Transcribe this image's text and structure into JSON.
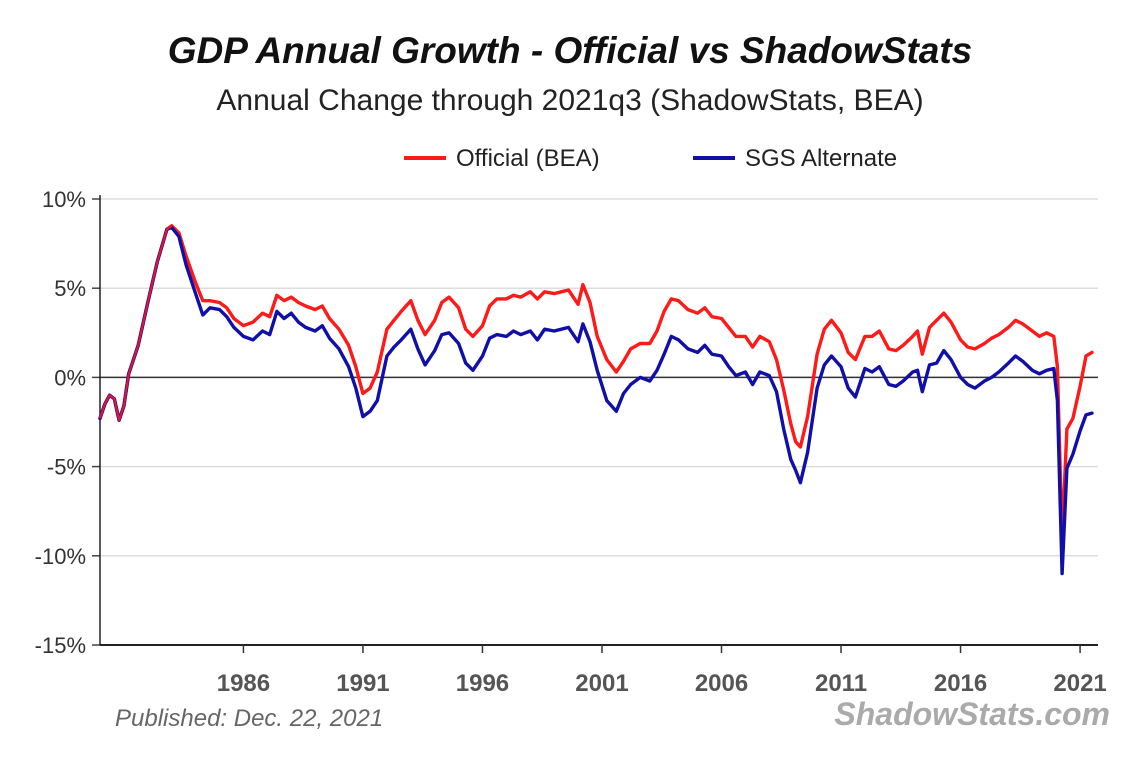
{
  "chart_data": {
    "type": "line",
    "title": "GDP Annual Growth - Official vs ShadowStats",
    "subtitle": "Annual Change through 2021q3  (ShadowStats, BEA)",
    "xlabel": "",
    "ylabel": "",
    "xlim": [
      1980.0,
      2021.75
    ],
    "ylim": [
      -15,
      10
    ],
    "y_ticks": [
      10,
      5,
      0,
      -5,
      -10,
      -15
    ],
    "y_tick_labels": [
      "10%",
      "5%",
      "0%",
      "-5%",
      "-10%",
      "-15%"
    ],
    "x_ticks": [
      1986,
      1991,
      1996,
      2001,
      2006,
      2011,
      2016,
      2021
    ],
    "x_tick_labels": [
      "1986",
      "1991",
      "1996",
      "2001",
      "2006",
      "2011",
      "2016",
      "2021"
    ],
    "grid": true,
    "legend_position": "top-center",
    "series": [
      {
        "name": "Official (BEA)",
        "color": "#ff1a1a",
        "points": [
          [
            1980.0,
            -2.3
          ],
          [
            1980.2,
            -1.5
          ],
          [
            1980.4,
            -1.0
          ],
          [
            1980.6,
            -1.2
          ],
          [
            1980.8,
            -2.4
          ],
          [
            1981.0,
            -1.6
          ],
          [
            1981.2,
            0.2
          ],
          [
            1981.6,
            1.8
          ],
          [
            1982.0,
            4.2
          ],
          [
            1982.4,
            6.5
          ],
          [
            1982.8,
            8.3
          ],
          [
            1983.0,
            8.5
          ],
          [
            1983.3,
            8.1
          ],
          [
            1983.6,
            6.8
          ],
          [
            1984.0,
            5.3
          ],
          [
            1984.3,
            4.3
          ],
          [
            1984.6,
            4.3
          ],
          [
            1985.0,
            4.2
          ],
          [
            1985.3,
            3.9
          ],
          [
            1985.6,
            3.3
          ],
          [
            1986.0,
            2.9
          ],
          [
            1986.4,
            3.1
          ],
          [
            1986.8,
            3.6
          ],
          [
            1987.1,
            3.4
          ],
          [
            1987.4,
            4.6
          ],
          [
            1987.7,
            4.3
          ],
          [
            1988.0,
            4.5
          ],
          [
            1988.3,
            4.2
          ],
          [
            1988.6,
            4.0
          ],
          [
            1989.0,
            3.8
          ],
          [
            1989.3,
            4.0
          ],
          [
            1989.6,
            3.3
          ],
          [
            1990.0,
            2.7
          ],
          [
            1990.4,
            1.8
          ],
          [
            1990.7,
            0.6
          ],
          [
            1991.0,
            -0.9
          ],
          [
            1991.3,
            -0.6
          ],
          [
            1991.6,
            0.3
          ],
          [
            1992.0,
            2.7
          ],
          [
            1992.3,
            3.2
          ],
          [
            1992.6,
            3.7
          ],
          [
            1993.0,
            4.3
          ],
          [
            1993.3,
            3.2
          ],
          [
            1993.6,
            2.4
          ],
          [
            1994.0,
            3.2
          ],
          [
            1994.3,
            4.2
          ],
          [
            1994.6,
            4.5
          ],
          [
            1995.0,
            3.9
          ],
          [
            1995.3,
            2.7
          ],
          [
            1995.6,
            2.3
          ],
          [
            1996.0,
            2.9
          ],
          [
            1996.3,
            4.0
          ],
          [
            1996.6,
            4.4
          ],
          [
            1997.0,
            4.4
          ],
          [
            1997.3,
            4.6
          ],
          [
            1997.6,
            4.5
          ],
          [
            1998.0,
            4.8
          ],
          [
            1998.3,
            4.4
          ],
          [
            1998.6,
            4.8
          ],
          [
            1999.0,
            4.7
          ],
          [
            1999.3,
            4.8
          ],
          [
            1999.6,
            4.9
          ],
          [
            2000.0,
            4.1
          ],
          [
            2000.2,
            5.2
          ],
          [
            2000.5,
            4.2
          ],
          [
            2000.8,
            2.3
          ],
          [
            2001.2,
            1.0
          ],
          [
            2001.6,
            0.3
          ],
          [
            2001.9,
            0.9
          ],
          [
            2002.2,
            1.6
          ],
          [
            2002.6,
            1.9
          ],
          [
            2003.0,
            1.9
          ],
          [
            2003.3,
            2.6
          ],
          [
            2003.6,
            3.7
          ],
          [
            2003.9,
            4.4
          ],
          [
            2004.2,
            4.3
          ],
          [
            2004.6,
            3.8
          ],
          [
            2005.0,
            3.6
          ],
          [
            2005.3,
            3.9
          ],
          [
            2005.6,
            3.4
          ],
          [
            2006.0,
            3.3
          ],
          [
            2006.3,
            2.8
          ],
          [
            2006.6,
            2.3
          ],
          [
            2007.0,
            2.3
          ],
          [
            2007.3,
            1.7
          ],
          [
            2007.6,
            2.3
          ],
          [
            2008.0,
            2.0
          ],
          [
            2008.3,
            1.0
          ],
          [
            2008.6,
            -0.7
          ],
          [
            2008.9,
            -2.6
          ],
          [
            2009.1,
            -3.6
          ],
          [
            2009.3,
            -3.9
          ],
          [
            2009.6,
            -2.2
          ],
          [
            2010.0,
            1.3
          ],
          [
            2010.3,
            2.7
          ],
          [
            2010.6,
            3.2
          ],
          [
            2011.0,
            2.5
          ],
          [
            2011.3,
            1.4
          ],
          [
            2011.6,
            1.0
          ],
          [
            2012.0,
            2.3
          ],
          [
            2012.3,
            2.3
          ],
          [
            2012.6,
            2.6
          ],
          [
            2013.0,
            1.6
          ],
          [
            2013.3,
            1.5
          ],
          [
            2013.6,
            1.8
          ],
          [
            2014.0,
            2.3
          ],
          [
            2014.2,
            2.6
          ],
          [
            2014.4,
            1.3
          ],
          [
            2014.7,
            2.8
          ],
          [
            2015.0,
            3.2
          ],
          [
            2015.3,
            3.6
          ],
          [
            2015.6,
            3.1
          ],
          [
            2016.0,
            2.1
          ],
          [
            2016.3,
            1.7
          ],
          [
            2016.6,
            1.6
          ],
          [
            2017.0,
            1.9
          ],
          [
            2017.3,
            2.2
          ],
          [
            2017.6,
            2.4
          ],
          [
            2018.0,
            2.8
          ],
          [
            2018.3,
            3.2
          ],
          [
            2018.6,
            3.0
          ],
          [
            2019.0,
            2.6
          ],
          [
            2019.3,
            2.3
          ],
          [
            2019.6,
            2.5
          ],
          [
            2019.9,
            2.3
          ],
          [
            2020.05,
            0.6
          ],
          [
            2020.25,
            -9.1
          ],
          [
            2020.45,
            -2.9
          ],
          [
            2020.7,
            -2.3
          ],
          [
            2021.0,
            -0.5
          ],
          [
            2021.25,
            1.2
          ],
          [
            2021.5,
            1.4
          ]
        ]
      },
      {
        "name": "SGS Alternate",
        "color": "#1010a8",
        "points": [
          [
            1980.0,
            -2.3
          ],
          [
            1980.2,
            -1.5
          ],
          [
            1980.4,
            -1.0
          ],
          [
            1980.6,
            -1.2
          ],
          [
            1980.8,
            -2.4
          ],
          [
            1981.0,
            -1.6
          ],
          [
            1981.2,
            0.2
          ],
          [
            1981.6,
            1.8
          ],
          [
            1982.0,
            4.2
          ],
          [
            1982.4,
            6.5
          ],
          [
            1982.8,
            8.3
          ],
          [
            1983.0,
            8.4
          ],
          [
            1983.3,
            7.9
          ],
          [
            1983.6,
            6.3
          ],
          [
            1984.0,
            4.7
          ],
          [
            1984.3,
            3.5
          ],
          [
            1984.6,
            3.9
          ],
          [
            1985.0,
            3.8
          ],
          [
            1985.3,
            3.4
          ],
          [
            1985.6,
            2.8
          ],
          [
            1986.0,
            2.3
          ],
          [
            1986.4,
            2.1
          ],
          [
            1986.8,
            2.6
          ],
          [
            1987.1,
            2.4
          ],
          [
            1987.4,
            3.7
          ],
          [
            1987.7,
            3.3
          ],
          [
            1988.0,
            3.6
          ],
          [
            1988.3,
            3.1
          ],
          [
            1988.6,
            2.8
          ],
          [
            1989.0,
            2.6
          ],
          [
            1989.3,
            2.9
          ],
          [
            1989.6,
            2.2
          ],
          [
            1990.0,
            1.6
          ],
          [
            1990.4,
            0.6
          ],
          [
            1990.7,
            -0.6
          ],
          [
            1991.0,
            -2.2
          ],
          [
            1991.3,
            -1.9
          ],
          [
            1991.6,
            -1.3
          ],
          [
            1992.0,
            1.2
          ],
          [
            1992.3,
            1.7
          ],
          [
            1992.6,
            2.1
          ],
          [
            1993.0,
            2.7
          ],
          [
            1993.3,
            1.6
          ],
          [
            1993.6,
            0.7
          ],
          [
            1994.0,
            1.5
          ],
          [
            1994.3,
            2.4
          ],
          [
            1994.6,
            2.5
          ],
          [
            1995.0,
            1.9
          ],
          [
            1995.3,
            0.8
          ],
          [
            1995.6,
            0.4
          ],
          [
            1996.0,
            1.2
          ],
          [
            1996.3,
            2.2
          ],
          [
            1996.6,
            2.4
          ],
          [
            1997.0,
            2.3
          ],
          [
            1997.3,
            2.6
          ],
          [
            1997.6,
            2.4
          ],
          [
            1998.0,
            2.6
          ],
          [
            1998.3,
            2.1
          ],
          [
            1998.6,
            2.7
          ],
          [
            1999.0,
            2.6
          ],
          [
            1999.3,
            2.7
          ],
          [
            1999.6,
            2.8
          ],
          [
            2000.0,
            2.0
          ],
          [
            2000.2,
            3.0
          ],
          [
            2000.5,
            2.0
          ],
          [
            2000.8,
            0.4
          ],
          [
            2001.2,
            -1.3
          ],
          [
            2001.6,
            -1.9
          ],
          [
            2001.9,
            -0.9
          ],
          [
            2002.2,
            -0.4
          ],
          [
            2002.6,
            0.0
          ],
          [
            2003.0,
            -0.2
          ],
          [
            2003.3,
            0.4
          ],
          [
            2003.6,
            1.3
          ],
          [
            2003.9,
            2.3
          ],
          [
            2004.2,
            2.1
          ],
          [
            2004.6,
            1.6
          ],
          [
            2005.0,
            1.4
          ],
          [
            2005.3,
            1.8
          ],
          [
            2005.6,
            1.3
          ],
          [
            2006.0,
            1.2
          ],
          [
            2006.3,
            0.6
          ],
          [
            2006.6,
            0.1
          ],
          [
            2007.0,
            0.3
          ],
          [
            2007.3,
            -0.4
          ],
          [
            2007.6,
            0.3
          ],
          [
            2008.0,
            0.1
          ],
          [
            2008.3,
            -0.8
          ],
          [
            2008.6,
            -2.9
          ],
          [
            2008.9,
            -4.6
          ],
          [
            2009.1,
            -5.2
          ],
          [
            2009.3,
            -5.9
          ],
          [
            2009.6,
            -4.2
          ],
          [
            2010.0,
            -0.6
          ],
          [
            2010.3,
            0.7
          ],
          [
            2010.6,
            1.2
          ],
          [
            2011.0,
            0.6
          ],
          [
            2011.3,
            -0.6
          ],
          [
            2011.6,
            -1.1
          ],
          [
            2012.0,
            0.5
          ],
          [
            2012.3,
            0.3
          ],
          [
            2012.6,
            0.6
          ],
          [
            2013.0,
            -0.4
          ],
          [
            2013.3,
            -0.5
          ],
          [
            2013.6,
            -0.2
          ],
          [
            2014.0,
            0.3
          ],
          [
            2014.2,
            0.4
          ],
          [
            2014.4,
            -0.8
          ],
          [
            2014.7,
            0.7
          ],
          [
            2015.0,
            0.8
          ],
          [
            2015.3,
            1.5
          ],
          [
            2015.6,
            1.0
          ],
          [
            2016.0,
            0.0
          ],
          [
            2016.3,
            -0.4
          ],
          [
            2016.6,
            -0.6
          ],
          [
            2017.0,
            -0.2
          ],
          [
            2017.3,
            0.0
          ],
          [
            2017.6,
            0.3
          ],
          [
            2018.0,
            0.8
          ],
          [
            2018.3,
            1.2
          ],
          [
            2018.6,
            0.9
          ],
          [
            2019.0,
            0.4
          ],
          [
            2019.3,
            0.2
          ],
          [
            2019.6,
            0.4
          ],
          [
            2019.9,
            0.5
          ],
          [
            2020.05,
            -1.3
          ],
          [
            2020.25,
            -11.0
          ],
          [
            2020.45,
            -5.1
          ],
          [
            2020.7,
            -4.3
          ],
          [
            2021.0,
            -3.0
          ],
          [
            2021.25,
            -2.1
          ],
          [
            2021.5,
            -2.0
          ]
        ]
      }
    ]
  },
  "footer": {
    "published": "Published: Dec. 22, 2021",
    "credit": "ShadowStats.com"
  }
}
